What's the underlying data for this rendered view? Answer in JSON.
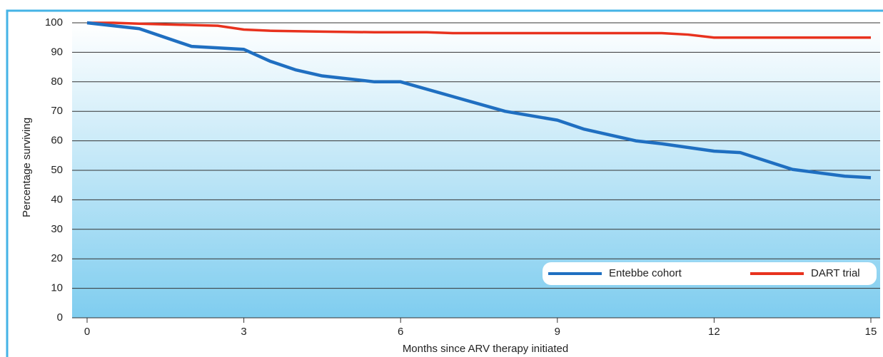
{
  "chart_data": {
    "type": "line",
    "xlabel": "Months since ARV therapy initiated",
    "ylabel": "Percentage surviving",
    "xlim": [
      0,
      15
    ],
    "xticks": [
      0,
      3,
      6,
      9,
      12,
      15
    ],
    "ylim": [
      0,
      100
    ],
    "yticks": [
      0,
      10,
      20,
      30,
      40,
      50,
      60,
      70,
      80,
      90,
      100
    ],
    "grid": true,
    "legend": "lower right",
    "series": [
      {
        "name": "Entebbe cohort",
        "color": "#1f6fc1",
        "x": [
          0,
          1,
          2,
          3,
          3.5,
          4,
          4.5,
          5.5,
          6,
          7,
          8,
          9,
          9.5,
          10.5,
          11,
          12,
          12.5,
          13.5,
          14.5,
          15
        ],
        "values": [
          100,
          98,
          92,
          91,
          87,
          84,
          82,
          80,
          80,
          75,
          70,
          67,
          64,
          60,
          59,
          56.5,
          56,
          50.3,
          48,
          47.5
        ]
      },
      {
        "name": "DART trial",
        "color": "#e8321e",
        "x": [
          0,
          0.5,
          1,
          2.5,
          3,
          3.5,
          4.5,
          5.5,
          6.5,
          7,
          11,
          11.5,
          12,
          15
        ],
        "values": [
          100,
          100,
          99.7,
          99,
          97.7,
          97.3,
          97,
          96.8,
          96.8,
          96.5,
          96.5,
          96,
          95,
          95
        ]
      }
    ]
  }
}
